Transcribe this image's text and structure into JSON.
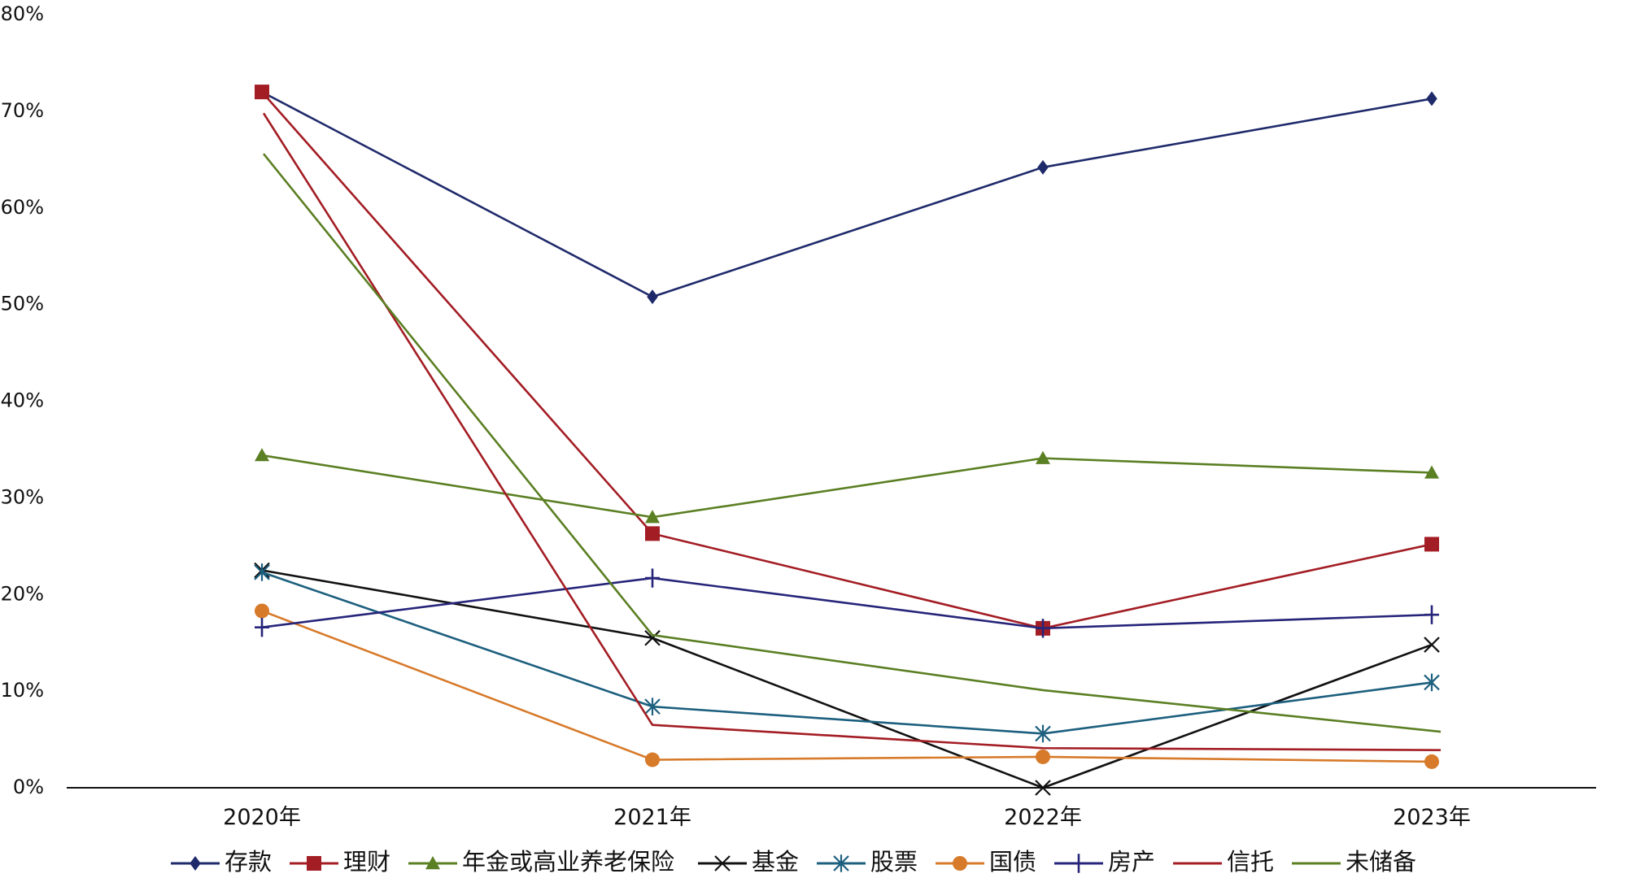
{
  "chart_data": {
    "type": "line",
    "title": "",
    "xlabel": "",
    "ylabel": "",
    "categories": [
      "2020年",
      "2021年",
      "2022年",
      "2023年"
    ],
    "ylim": [
      0,
      80
    ],
    "yticks": [
      "0%",
      "10%",
      "20%",
      "30%",
      "40%",
      "50%",
      "60%",
      "70%",
      "80%"
    ],
    "grid": false,
    "legend_position": "bottom",
    "series": [
      {
        "name": "存款",
        "color": "#1F2A6B",
        "marker": "diamond",
        "values": [
          72.0,
          50.8,
          64.2,
          71.3
        ]
      },
      {
        "name": "理财",
        "color": "#A31D24",
        "marker": "square",
        "values": [
          72.0,
          26.3,
          16.5,
          25.2
        ]
      },
      {
        "name": "年金或高业养老保险",
        "color": "#5B7F23",
        "marker": "triangle",
        "values": [
          34.4,
          28.0,
          34.1,
          32.6
        ]
      },
      {
        "name": "基金",
        "color": "#111111",
        "marker": "x",
        "values": [
          22.5,
          15.5,
          0.0,
          14.8
        ]
      },
      {
        "name": "股票",
        "color": "#1C5F7E",
        "marker": "star",
        "values": [
          22.3,
          8.4,
          5.6,
          10.9
        ]
      },
      {
        "name": "国债",
        "color": "#D77A2A",
        "marker": "circle",
        "values": [
          18.3,
          2.9,
          3.2,
          2.7
        ]
      },
      {
        "name": "房产",
        "color": "#26257A",
        "marker": "plus",
        "values": [
          16.6,
          21.7,
          16.5,
          17.9
        ]
      },
      {
        "name": "信托",
        "color": "#A31D24",
        "marker": "none",
        "values": [
          69.8,
          6.5,
          4.1,
          3.9
        ]
      },
      {
        "name": "未储备",
        "color": "#5B7F23",
        "marker": "none",
        "values": [
          65.6,
          15.8,
          10.1,
          5.8
        ]
      }
    ]
  }
}
